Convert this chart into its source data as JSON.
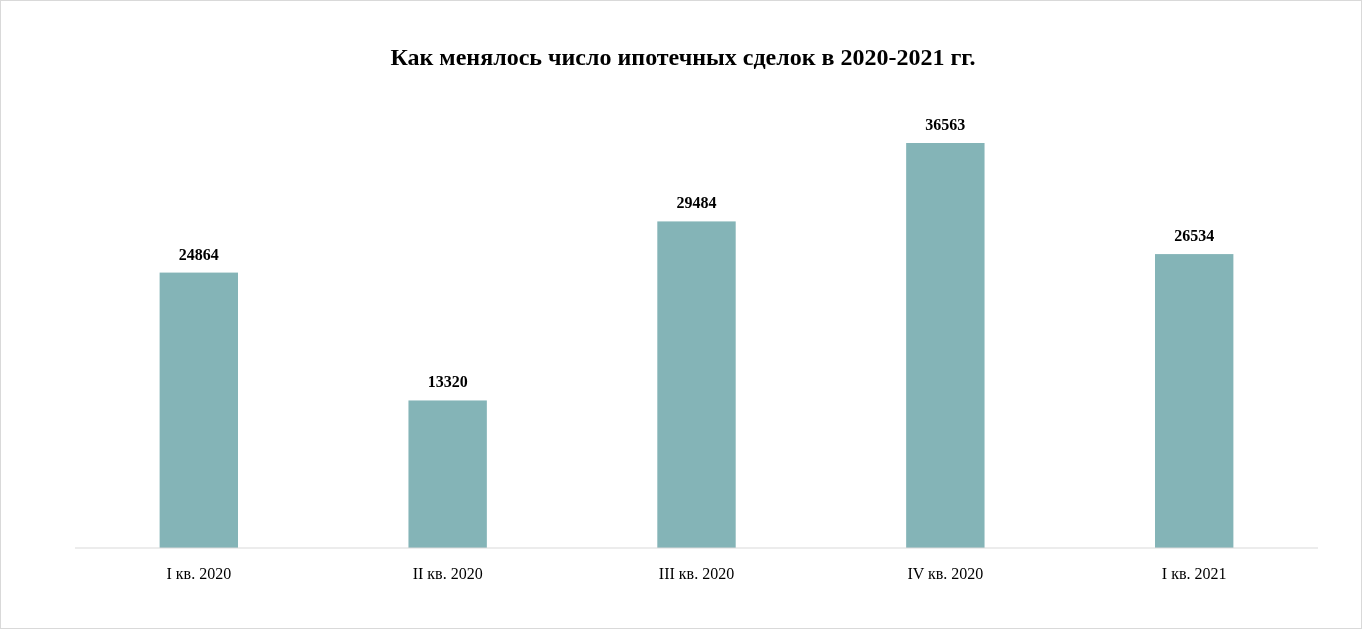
{
  "chart_data": {
    "type": "bar",
    "title": "Как менялось число ипотечных сделок в 2020-2021 гг.",
    "categories": [
      "I кв. 2020",
      "II кв. 2020",
      "III кв. 2020",
      "IV кв. 2020",
      "I кв. 2021"
    ],
    "values": [
      24864,
      13320,
      29484,
      36563,
      26534
    ],
    "color": "#84b4b7",
    "data_labels": true
  }
}
